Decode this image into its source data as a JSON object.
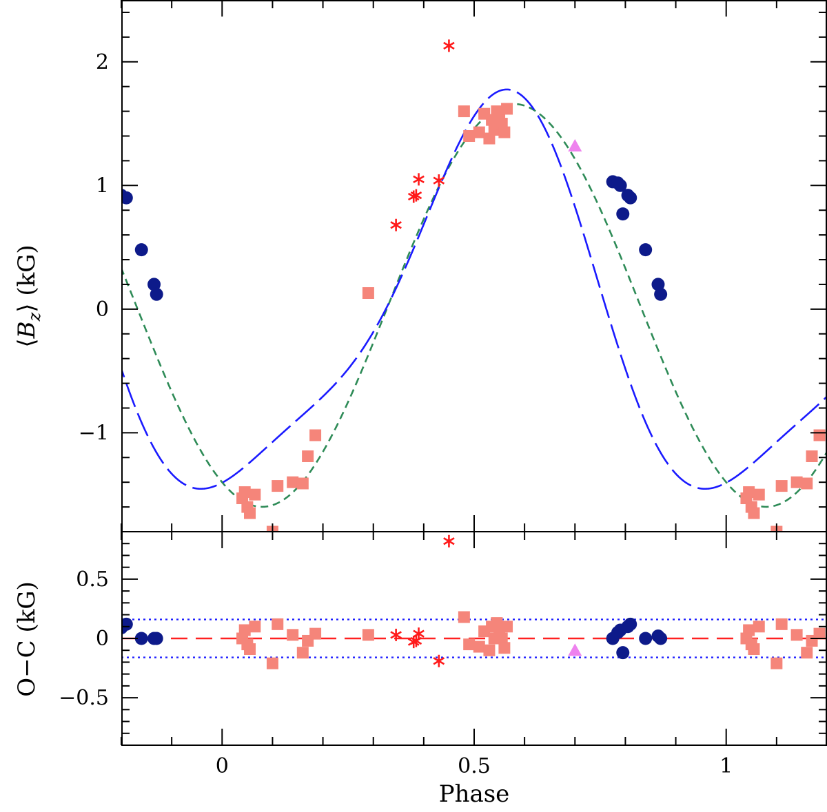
{
  "chart_data": {
    "type": "scatter",
    "xlabel": "Phase",
    "xlim": [
      -0.2,
      1.2
    ],
    "x_ticks": [
      0,
      0.5,
      1
    ],
    "x_tick_labels": [
      "0",
      "0.5",
      "1"
    ],
    "colors": {
      "circle": "#0d1a8a",
      "square": "#f5857a",
      "star": "#ff1a1a",
      "triangle": "#ee82ee",
      "fit_long_dash": "#1a1aff",
      "fit_short_dash": "#2e8b57",
      "zero_line": "#ff2020",
      "band_line": "#2020ff"
    },
    "top_panel": {
      "ylabel_prefix": "⟨",
      "ylabel_var": "B",
      "ylabel_sub": "z",
      "ylabel_suffix": "⟩ (kG)",
      "ylim": [
        -1.8,
        2.5
      ],
      "y_ticks": [
        -1,
        0,
        1,
        2
      ],
      "y_tick_labels": [
        "−1",
        "0",
        "1",
        "2"
      ],
      "fit_long_dash": {
        "mean": -0.04,
        "a1": -1.483,
        "b1": -0.325,
        "a2": 0.119,
        "b2": 0.336
      },
      "fit_short_dash": {
        "mean": 0.03,
        "a1": -1.43,
        "b1": -0.78
      },
      "series": [
        {
          "name": "circles",
          "marker": "circle",
          "x": [
            0.775,
            0.785,
            0.79,
            0.795,
            0.805,
            0.81,
            0.84,
            0.865,
            0.87,
            -0.2,
            -0.19,
            -0.16,
            -0.135,
            -0.13
          ],
          "y": [
            1.03,
            1.02,
            1.0,
            0.77,
            0.92,
            0.9,
            0.48,
            0.2,
            0.12,
            0.92,
            0.9,
            0.48,
            0.2,
            0.12
          ]
        },
        {
          "name": "squares",
          "marker": "square",
          "x": [
            0.04,
            0.045,
            0.05,
            0.055,
            0.065,
            0.1,
            0.11,
            0.14,
            0.16,
            0.17,
            0.185,
            0.29,
            0.48,
            0.49,
            0.51,
            0.52,
            0.53,
            0.535,
            0.54,
            0.545,
            0.55,
            0.555,
            0.56,
            0.565,
            1.04,
            1.045,
            1.05,
            1.055,
            1.065,
            1.1,
            1.11,
            1.14,
            1.16,
            1.17,
            1.185
          ],
          "y": [
            -1.53,
            -1.48,
            -1.6,
            -1.65,
            -1.5,
            -1.8,
            -1.43,
            -1.4,
            -1.41,
            -1.19,
            -1.02,
            0.13,
            1.6,
            1.4,
            1.43,
            1.58,
            1.38,
            1.53,
            1.45,
            1.6,
            1.55,
            1.5,
            1.43,
            1.62,
            -1.53,
            -1.48,
            -1.6,
            -1.65,
            -1.5,
            -1.8,
            -1.43,
            -1.4,
            -1.41,
            -1.19,
            -1.02
          ]
        },
        {
          "name": "stars",
          "marker": "star",
          "x": [
            0.345,
            0.38,
            0.385,
            0.39,
            0.43,
            0.45
          ],
          "y": [
            0.68,
            0.91,
            0.92,
            1.05,
            1.04,
            2.13
          ]
        },
        {
          "name": "triangle",
          "marker": "triangle",
          "x": [
            0.7
          ],
          "y": [
            1.32
          ]
        }
      ]
    },
    "bottom_panel": {
      "ylabel": "O−C (kG)",
      "ylim": [
        -0.9,
        0.9
      ],
      "y_ticks": [
        -0.5,
        0,
        0.5
      ],
      "y_tick_labels": [
        "−0.5",
        "0",
        "0.5"
      ],
      "zero_line": 0,
      "sigma_band": 0.16,
      "series": [
        {
          "name": "circles",
          "marker": "circle",
          "x": [
            0.775,
            0.785,
            0.79,
            0.795,
            0.805,
            0.81,
            0.84,
            0.865,
            0.87,
            -0.2,
            -0.19,
            -0.16,
            -0.135,
            -0.13
          ],
          "y": [
            0.0,
            0.05,
            0.07,
            -0.12,
            0.1,
            0.12,
            0.0,
            0.02,
            0.0,
            0.09,
            0.12,
            0.0,
            0.0,
            0.0
          ]
        },
        {
          "name": "squares",
          "marker": "square",
          "x": [
            0.04,
            0.045,
            0.05,
            0.055,
            0.065,
            0.1,
            0.11,
            0.14,
            0.16,
            0.17,
            0.185,
            0.29,
            0.48,
            0.49,
            0.51,
            0.52,
            0.53,
            0.535,
            0.54,
            0.545,
            0.55,
            0.555,
            0.56,
            0.565,
            1.04,
            1.045,
            1.05,
            1.055,
            1.065,
            1.1,
            1.11,
            1.14,
            1.16,
            1.17,
            1.185
          ],
          "y": [
            0.0,
            0.07,
            -0.05,
            -0.09,
            0.1,
            -0.21,
            0.12,
            0.03,
            -0.12,
            -0.02,
            0.04,
            0.03,
            0.18,
            -0.05,
            -0.07,
            0.06,
            -0.1,
            0.1,
            0.0,
            0.13,
            0.05,
            0.0,
            -0.08,
            0.1,
            0.0,
            0.07,
            -0.05,
            -0.09,
            0.1,
            -0.21,
            0.12,
            0.03,
            -0.12,
            -0.02,
            0.04
          ]
        },
        {
          "name": "stars",
          "marker": "star",
          "x": [
            0.345,
            0.38,
            0.385,
            0.39,
            0.43,
            0.45
          ],
          "y": [
            0.03,
            -0.03,
            -0.02,
            0.04,
            -0.19,
            0.82
          ]
        },
        {
          "name": "triangle",
          "marker": "triangle",
          "x": [
            0.7
          ],
          "y": [
            -0.1
          ]
        }
      ]
    }
  }
}
